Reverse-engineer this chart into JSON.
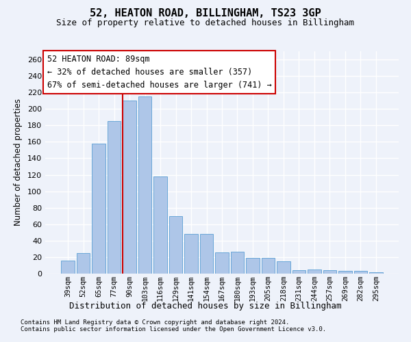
{
  "title1": "52, HEATON ROAD, BILLINGHAM, TS23 3GP",
  "title2": "Size of property relative to detached houses in Billingham",
  "xlabel": "Distribution of detached houses by size in Billingham",
  "ylabel": "Number of detached properties",
  "categories": [
    "39sqm",
    "52sqm",
    "65sqm",
    "77sqm",
    "90sqm",
    "103sqm",
    "116sqm",
    "129sqm",
    "141sqm",
    "154sqm",
    "167sqm",
    "180sqm",
    "193sqm",
    "205sqm",
    "218sqm",
    "231sqm",
    "244sqm",
    "257sqm",
    "269sqm",
    "282sqm",
    "295sqm"
  ],
  "values": [
    16,
    25,
    158,
    185,
    210,
    215,
    118,
    70,
    48,
    48,
    26,
    27,
    19,
    19,
    15,
    4,
    5,
    4,
    3,
    3,
    2
  ],
  "bar_color": "#aec6e8",
  "bar_edge_color": "#5a9fd4",
  "vline_color": "#cc0000",
  "annotation_text": "52 HEATON ROAD: 89sqm\n← 32% of detached houses are smaller (357)\n67% of semi-detached houses are larger (741) →",
  "background_color": "#eef2fa",
  "grid_color": "#ffffff",
  "footnote1": "Contains HM Land Registry data © Crown copyright and database right 2024.",
  "footnote2": "Contains public sector information licensed under the Open Government Licence v3.0.",
  "ylim": [
    0,
    270
  ],
  "vline_bar_index": 4
}
